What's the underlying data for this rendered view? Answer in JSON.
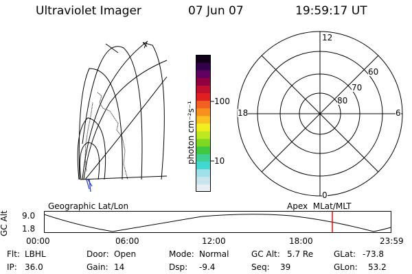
{
  "header": {
    "instrument": "Ultraviolet Imager",
    "date": "07 Jun 07",
    "time": "19:59:17 UT"
  },
  "colorbar": {
    "unit_label": "photon cm⁻²s⁻¹",
    "tick_labels": [
      "100",
      "10"
    ],
    "colors": [
      "#e8eef4",
      "#c8e4ec",
      "#a0e0e8",
      "#40d8d0",
      "#40d090",
      "#40c840",
      "#80d820",
      "#c0e820",
      "#f0f020",
      "#f8c020",
      "#f89020",
      "#f06020",
      "#e02020",
      "#c01030",
      "#900040",
      "#600060",
      "#300048",
      "#100018"
    ]
  },
  "polar_plot": {
    "mlt_labels": [
      "12",
      "18",
      "6",
      "0"
    ],
    "lat_labels": [
      "60",
      "70",
      "80"
    ]
  },
  "timeline": {
    "left_label": "Geographic Lat/Lon",
    "right_label": "Apex  MLat/MLT",
    "axis_label": "GC Alt",
    "y_ticks": [
      "9.0",
      "1.8"
    ],
    "x_ticks": [
      "00:00",
      "06:00",
      "12:00",
      "18:00",
      "23:59"
    ],
    "marker_color": "#ff0000"
  },
  "footer": {
    "row1": [
      {
        "key": "Flt:",
        "value": "LBHL"
      },
      {
        "key": "Door:",
        "value": "Open"
      },
      {
        "key": "Mode:",
        "value": "Normal"
      },
      {
        "key": "GC Alt:",
        "value": "5.7 Re"
      },
      {
        "key": "GLat:",
        "value": "-73.8"
      }
    ],
    "row2": [
      {
        "key": "IP:",
        "value": "36.0"
      },
      {
        "key": "Gain:",
        "value": "14"
      },
      {
        "key": "Dsp:",
        "value": "-9.4"
      },
      {
        "key": "Seq:",
        "value": "39"
      },
      {
        "key": "GLon:",
        "value": "53.2"
      }
    ]
  }
}
